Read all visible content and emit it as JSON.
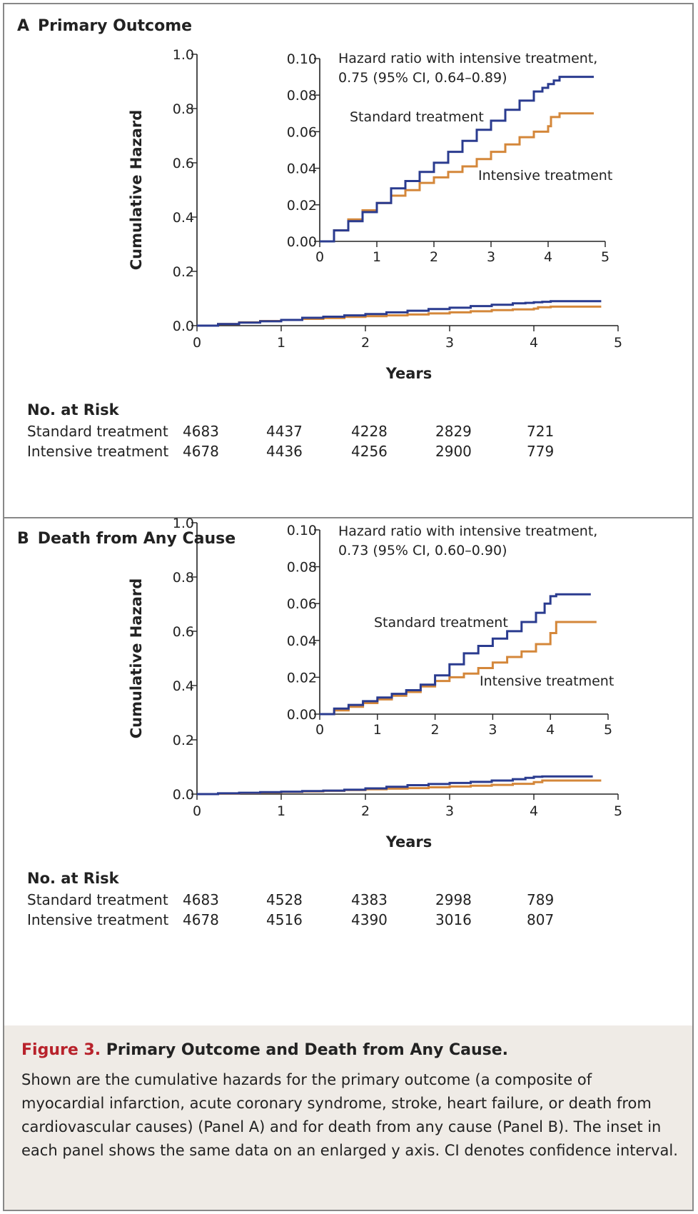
{
  "colors": {
    "standard": "#2a3b8f",
    "intensive": "#d4873a",
    "caption_bg": "#efebe6",
    "figure_label": "#b8222b"
  },
  "panels": [
    {
      "letter": "A",
      "title": "Primary Outcome",
      "ylabel": "Cumulative Hazard",
      "xlabel": "Years",
      "y_ticks": [
        "0.0",
        "0.2",
        "0.4",
        "0.6",
        "0.8",
        "1.0"
      ],
      "x_ticks": [
        "0",
        "1",
        "2",
        "3",
        "4",
        "5"
      ],
      "inset_y_ticks": [
        "0.00",
        "0.02",
        "0.04",
        "0.06",
        "0.08",
        "0.10"
      ],
      "inset_x_ticks": [
        "0",
        "1",
        "2",
        "3",
        "4",
        "5"
      ],
      "hr_line1": "Hazard ratio with intensive treatment,",
      "hr_line2": "0.75 (95% CI, 0.64–0.89)",
      "standard_label": "Standard treatment",
      "intensive_label": "Intensive treatment",
      "risk_title": "No. at Risk",
      "risk_rows": [
        {
          "label": "Standard treatment",
          "values": [
            "4683",
            "4437",
            "4228",
            "2829",
            "721"
          ]
        },
        {
          "label": "Intensive treatment",
          "values": [
            "4678",
            "4436",
            "4256",
            "2900",
            "779"
          ]
        }
      ]
    },
    {
      "letter": "B",
      "title": "Death from Any Cause",
      "ylabel": "Cumulative Hazard",
      "xlabel": "Years",
      "y_ticks": [
        "0.0",
        "0.2",
        "0.4",
        "0.6",
        "0.8",
        "1.0"
      ],
      "x_ticks": [
        "0",
        "1",
        "2",
        "3",
        "4",
        "5"
      ],
      "inset_y_ticks": [
        "0.00",
        "0.02",
        "0.04",
        "0.06",
        "0.08",
        "0.10"
      ],
      "inset_x_ticks": [
        "0",
        "1",
        "2",
        "3",
        "4",
        "5"
      ],
      "hr_line1": "Hazard ratio with intensive treatment,",
      "hr_line2": "0.73 (95% CI, 0.60–0.90)",
      "standard_label": "Standard treatment",
      "intensive_label": "Intensive treatment",
      "risk_title": "No. at Risk",
      "risk_rows": [
        {
          "label": "Standard treatment",
          "values": [
            "4683",
            "4528",
            "4383",
            "2998",
            "789"
          ]
        },
        {
          "label": "Intensive treatment",
          "values": [
            "4678",
            "4516",
            "4390",
            "3016",
            "807"
          ]
        }
      ]
    }
  ],
  "caption": {
    "label": "Figure 3.",
    "title": "Primary Outcome and Death from Any Cause.",
    "body": "Shown are the cumulative hazards for the primary outcome (a composite of myocardial infarction, acute coronary syndrome, stroke, heart failure, or death from cardiovascular causes) (Panel A) and for death from any cause (Panel B). The inset in each panel shows the same data on an enlarged y axis. CI denotes confidence interval."
  },
  "chart_data": [
    {
      "type": "line",
      "title": "Primary Outcome",
      "xlabel": "Years",
      "ylabel": "Cumulative Hazard",
      "xlim": [
        0,
        5
      ],
      "ylim": [
        0,
        1.0
      ],
      "inset_ylim": [
        0,
        0.1
      ],
      "series": [
        {
          "name": "Standard treatment",
          "x": [
            0,
            0.25,
            0.5,
            0.75,
            1.0,
            1.25,
            1.5,
            1.75,
            2.0,
            2.25,
            2.5,
            2.75,
            3.0,
            3.25,
            3.5,
            3.75,
            3.9,
            4.0,
            4.1,
            4.2,
            4.5,
            4.8
          ],
          "y": [
            0,
            0.006,
            0.011,
            0.016,
            0.021,
            0.029,
            0.033,
            0.038,
            0.043,
            0.049,
            0.055,
            0.061,
            0.066,
            0.072,
            0.077,
            0.082,
            0.084,
            0.086,
            0.088,
            0.09,
            0.09,
            0.09
          ]
        },
        {
          "name": "Intensive treatment",
          "x": [
            0,
            0.25,
            0.5,
            0.75,
            1.0,
            1.25,
            1.5,
            1.75,
            2.0,
            2.25,
            2.5,
            2.75,
            3.0,
            3.25,
            3.5,
            3.75,
            4.0,
            4.05,
            4.2,
            4.5,
            4.8
          ],
          "y": [
            0,
            0.006,
            0.012,
            0.017,
            0.021,
            0.025,
            0.028,
            0.032,
            0.035,
            0.038,
            0.041,
            0.045,
            0.049,
            0.053,
            0.057,
            0.06,
            0.063,
            0.068,
            0.07,
            0.07,
            0.07
          ]
        }
      ]
    },
    {
      "type": "line",
      "title": "Death from Any Cause",
      "xlabel": "Years",
      "ylabel": "Cumulative Hazard",
      "xlim": [
        0,
        5
      ],
      "ylim": [
        0,
        1.0
      ],
      "inset_ylim": [
        0,
        0.1
      ],
      "series": [
        {
          "name": "Standard treatment",
          "x": [
            0,
            0.25,
            0.5,
            0.75,
            1.0,
            1.25,
            1.5,
            1.75,
            2.0,
            2.25,
            2.5,
            2.75,
            3.0,
            3.25,
            3.5,
            3.75,
            3.9,
            4.0,
            4.1,
            4.5,
            4.7
          ],
          "y": [
            0,
            0.003,
            0.005,
            0.007,
            0.009,
            0.011,
            0.013,
            0.016,
            0.021,
            0.027,
            0.033,
            0.037,
            0.041,
            0.045,
            0.05,
            0.055,
            0.06,
            0.064,
            0.065,
            0.065,
            0.065
          ]
        },
        {
          "name": "Intensive treatment",
          "x": [
            0,
            0.25,
            0.5,
            0.75,
            1.0,
            1.25,
            1.5,
            1.75,
            2.0,
            2.25,
            2.5,
            2.75,
            3.0,
            3.25,
            3.5,
            3.75,
            4.0,
            4.1,
            4.5,
            4.8
          ],
          "y": [
            0,
            0.002,
            0.004,
            0.006,
            0.008,
            0.01,
            0.012,
            0.015,
            0.018,
            0.02,
            0.022,
            0.025,
            0.028,
            0.031,
            0.034,
            0.038,
            0.044,
            0.05,
            0.05,
            0.05
          ]
        }
      ]
    }
  ]
}
